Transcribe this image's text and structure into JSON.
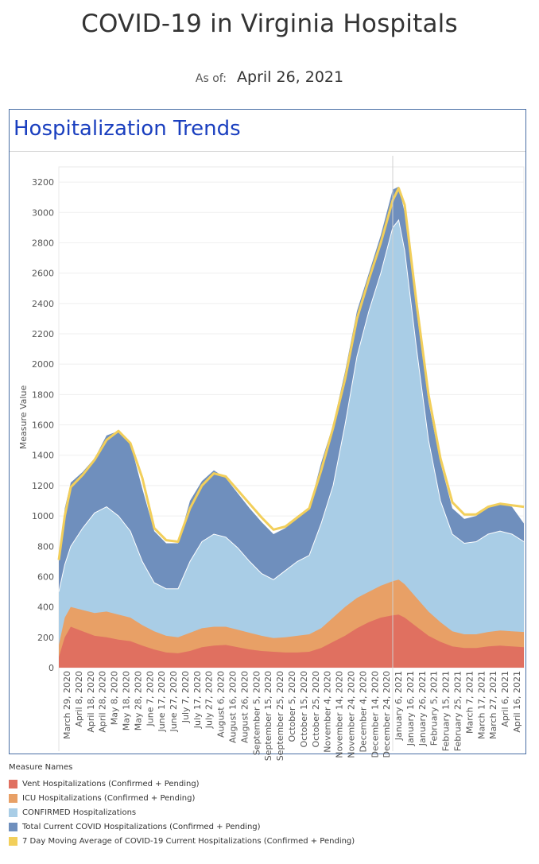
{
  "header": {
    "title": "COVID-19 in Virginia Hospitals",
    "asof_label": "As of:",
    "asof_date": "April 26, 2021"
  },
  "panel": {
    "title": "Hospitalization Trends"
  },
  "legend": {
    "title": "Measure Names",
    "items": [
      {
        "label": "Vent Hospitalizations (Confirmed + Pending)",
        "color": "#e07060"
      },
      {
        "label": "ICU Hospitalizations (Confirmed + Pending)",
        "color": "#e8a066"
      },
      {
        "label": "CONFIRMED Hospitalizations",
        "color": "#a9cde6"
      },
      {
        "label": "Total Current COVID Hospitalizations (Confirmed + Pending)",
        "color": "#6f8fbd"
      },
      {
        "label": "7 Day Moving Average of COVID-19 Current Hospitalizations (Confirmed + Pending)",
        "color": "#f2cf5b"
      }
    ]
  },
  "chart_data": {
    "type": "area",
    "ylabel": "Measure Value",
    "ylim": [
      0,
      3300
    ],
    "yticks": [
      0,
      200,
      400,
      600,
      800,
      1000,
      1200,
      1400,
      1600,
      1800,
      2000,
      2200,
      2400,
      2600,
      2800,
      3000,
      3200
    ],
    "x_tick_labels": [
      "March 29, 2020",
      "April 8, 2020",
      "April 18, 2020",
      "April 28, 2020",
      "May 8, 2020",
      "May 18, 2020",
      "May 28, 2020",
      "June 7, 2020",
      "June 17, 2020",
      "June 27, 2020",
      "July 7, 2020",
      "July 17, 2020",
      "July 27, 2020",
      "August 6, 2020",
      "August 16, 2020",
      "August 26, 2020",
      "September 5, 2020",
      "September 15, 2020",
      "September 25, 2020",
      "October 5, 2020",
      "October 15, 2020",
      "October 25, 2020",
      "November 4, 2020",
      "November 14, 2020",
      "November 24, 2020",
      "December 4, 2020",
      "December 14, 2020",
      "December 24, 2020",
      "January 6, 2021",
      "January 16, 2021",
      "January 26, 2021",
      "February 5, 2021",
      "February 15, 2021",
      "February 25, 2021",
      "March 7, 2021",
      "March 17, 2021",
      "March 27, 2021",
      "April 6, 2021",
      "April 16, 2021"
    ],
    "x_keypoints_days": [
      0,
      5,
      10,
      20,
      30,
      40,
      50,
      60,
      70,
      80,
      90,
      100,
      110,
      120,
      130,
      140,
      150,
      160,
      170,
      180,
      190,
      200,
      210,
      220,
      230,
      240,
      250,
      260,
      270,
      280,
      285,
      290,
      300,
      310,
      320,
      330,
      340,
      350,
      360,
      370,
      380,
      390
    ],
    "series": [
      {
        "name": "Total Current COVID Hospitalizations (Confirmed + Pending)",
        "values": [
          700,
          1050,
          1220,
          1290,
          1380,
          1530,
          1560,
          1480,
          1180,
          900,
          820,
          820,
          1100,
          1230,
          1300,
          1250,
          1150,
          1050,
          960,
          880,
          920,
          1000,
          1050,
          1350,
          1600,
          1950,
          2350,
          2600,
          2850,
          3150,
          3170,
          3000,
          2350,
          1750,
          1350,
          1050,
          980,
          1000,
          1060,
          1080,
          1060,
          950
        ]
      },
      {
        "name": "CONFIRMED Hospitalizations",
        "values": [
          500,
          680,
          800,
          920,
          1020,
          1060,
          1000,
          900,
          700,
          560,
          520,
          520,
          700,
          830,
          880,
          860,
          790,
          700,
          620,
          580,
          640,
          700,
          740,
          950,
          1200,
          1600,
          2050,
          2350,
          2600,
          2900,
          2950,
          2750,
          2100,
          1500,
          1100,
          880,
          820,
          830,
          880,
          900,
          880,
          830
        ]
      },
      {
        "name": "ICU Hospitalizations (Confirmed + Pending)",
        "values": [
          150,
          330,
          400,
          380,
          360,
          370,
          350,
          330,
          280,
          240,
          210,
          200,
          230,
          260,
          270,
          270,
          250,
          230,
          210,
          195,
          200,
          210,
          220,
          260,
          330,
          400,
          460,
          500,
          540,
          570,
          580,
          550,
          460,
          370,
          300,
          240,
          220,
          220,
          235,
          245,
          240,
          235
        ]
      },
      {
        "name": "Vent Hospitalizations (Confirmed + Pending)",
        "values": [
          70,
          200,
          270,
          240,
          210,
          200,
          185,
          175,
          145,
          120,
          100,
          95,
          110,
          135,
          145,
          150,
          135,
          120,
          110,
          105,
          100,
          100,
          105,
          130,
          170,
          210,
          260,
          300,
          330,
          345,
          350,
          330,
          270,
          210,
          170,
          140,
          130,
          130,
          140,
          145,
          140,
          135
        ]
      },
      {
        "name": "7 Day Moving Average of COVID-19 Current Hospitalizations (Confirmed + Pending)",
        "values": [
          710,
          1000,
          1190,
          1270,
          1370,
          1500,
          1560,
          1480,
          1250,
          920,
          840,
          830,
          1050,
          1200,
          1280,
          1260,
          1170,
          1080,
          990,
          910,
          930,
          990,
          1050,
          1300,
          1580,
          1900,
          2300,
          2560,
          2800,
          3080,
          3160,
          3050,
          2400,
          1800,
          1380,
          1090,
          1010,
          1010,
          1060,
          1080,
          1070,
          1060
        ]
      }
    ]
  }
}
